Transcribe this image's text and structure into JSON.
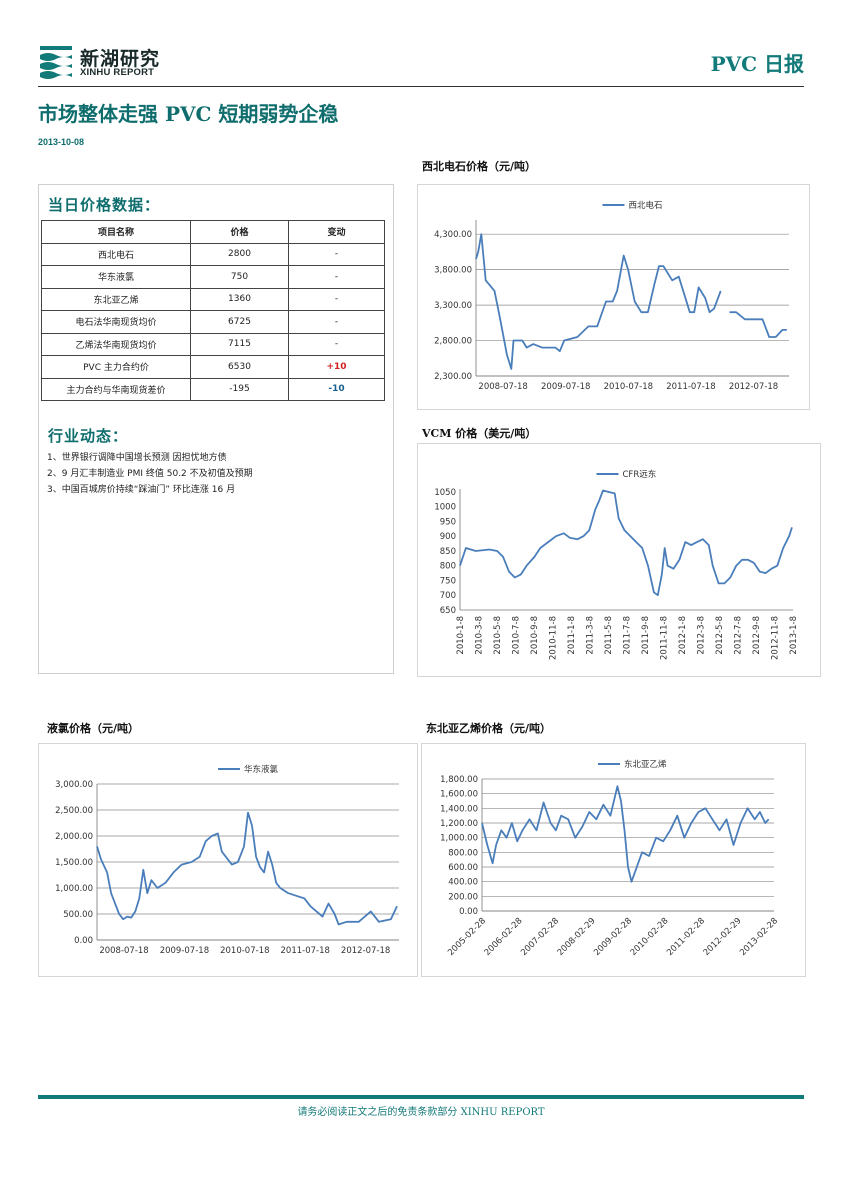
{
  "header": {
    "logo_cn": "新湖研究",
    "logo_en": "XINHU REPORT",
    "doc_type": "PVC 日报",
    "headline": "市场整体走强 PVC 短期弱势企稳",
    "date": "2013-10-08",
    "brand_color": "#127a78"
  },
  "price_section": {
    "heading": "当日价格数据：",
    "columns": [
      "项目名称",
      "价格",
      "变动"
    ],
    "rows": [
      {
        "name": "西北电石",
        "price": "2800",
        "change": "-"
      },
      {
        "name": "华东液氯",
        "price": "750",
        "change": "-"
      },
      {
        "name": "东北亚乙烯",
        "price": "1360",
        "change": "-"
      },
      {
        "name": "电石法华南现货均价",
        "price": "6725",
        "change": "-"
      },
      {
        "name": "乙烯法华南现货均价",
        "price": "7115",
        "change": "-"
      },
      {
        "name": "PVC 主力合约价",
        "price": "6530",
        "change": "+10"
      },
      {
        "name": "主力合约与华南现货差价",
        "price": "-195",
        "change": "-10"
      }
    ],
    "up_color": "#d21f1f",
    "down_color": "#155f8c"
  },
  "news_section": {
    "heading": "行业动态：",
    "items": [
      "1、世界银行调降中国增长预测  因担忧地方债",
      "2、9 月汇丰制造业 PMI 终值 50.2  不及初值及预期",
      "3、中国百城房价持续“踩油门”   环比连涨 16 月"
    ]
  },
  "footer": {
    "note": "请务必阅读正文之后的免责条款部分 XINHU REPORT"
  },
  "chart_data": [
    {
      "id": "carbide",
      "type": "line",
      "title": "西北电石价格（元/吨）",
      "series": [
        {
          "name": "西北电石",
          "color": "#4a7ebb"
        }
      ],
      "x_ticks": [
        "2008-07-18",
        "2009-07-18",
        "2010-07-18",
        "2011-07-18",
        "2012-07-18"
      ],
      "y_ticks": [
        "2,300.00",
        "2,800.00",
        "3,300.00",
        "3,800.00",
        "4,300.00"
      ],
      "ylim": [
        2300,
        4500
      ],
      "grid": true,
      "legend": "top",
      "points": [
        [
          0,
          3950
        ],
        [
          0.05,
          4050
        ],
        [
          0.12,
          4300
        ],
        [
          0.22,
          3650
        ],
        [
          0.42,
          3500
        ],
        [
          0.55,
          3100
        ],
        [
          0.7,
          2600
        ],
        [
          0.8,
          2400
        ],
        [
          0.85,
          2800
        ],
        [
          1.05,
          2800
        ],
        [
          1.15,
          2700
        ],
        [
          1.3,
          2750
        ],
        [
          1.5,
          2700
        ],
        [
          1.8,
          2700
        ],
        [
          1.9,
          2650
        ],
        [
          2.0,
          2800
        ],
        [
          2.3,
          2850
        ],
        [
          2.55,
          3000
        ],
        [
          2.75,
          3000
        ],
        [
          2.95,
          3350
        ],
        [
          3.1,
          3350
        ],
        [
          3.2,
          3500
        ],
        [
          3.35,
          4000
        ],
        [
          3.45,
          3800
        ],
        [
          3.6,
          3350
        ],
        [
          3.75,
          3200
        ],
        [
          3.9,
          3200
        ],
        [
          4.05,
          3600
        ],
        [
          4.15,
          3850
        ],
        [
          4.25,
          3850
        ],
        [
          4.45,
          3650
        ],
        [
          4.6,
          3700
        ],
        [
          4.75,
          3400
        ],
        [
          4.85,
          3200
        ],
        [
          4.95,
          3200
        ],
        [
          5.05,
          3550
        ],
        [
          5.2,
          3400
        ],
        [
          5.3,
          3200
        ],
        [
          5.4,
          3250
        ],
        [
          5.55,
          3500
        ],
        [
          5.7,
          null
        ],
        [
          5.75,
          3200
        ],
        [
          5.9,
          3200
        ],
        [
          6.1,
          3100
        ],
        [
          6.5,
          3100
        ],
        [
          6.65,
          2850
        ],
        [
          6.8,
          2850
        ],
        [
          6.95,
          2950
        ],
        [
          7.05,
          2950
        ]
      ],
      "x_domain": [
        0,
        7.1
      ]
    },
    {
      "id": "vcm",
      "type": "line",
      "title": "VCM 价格（美元/吨）",
      "series": [
        {
          "name": "CFR远东",
          "color": "#4a7ebb"
        }
      ],
      "x_ticks": [
        "2010-1-8",
        "2010-3-8",
        "2010-5-8",
        "2010-7-8",
        "2010-9-8",
        "2010-11-8",
        "2011-1-8",
        "2011-3-8",
        "2011-5-8",
        "2011-7-8",
        "2011-9-8",
        "2011-11-8",
        "2012-1-8",
        "2012-3-8",
        "2012-5-8",
        "2012-7-8",
        "2012-9-8",
        "2012-11-8",
        "2013-1-8"
      ],
      "y_ticks": [
        "650",
        "700",
        "750",
        "800",
        "850",
        "900",
        "950",
        "1000",
        "1050"
      ],
      "ylim": [
        650,
        1060
      ],
      "grid": false,
      "legend": "top",
      "points": [
        [
          0,
          800
        ],
        [
          0.3,
          860
        ],
        [
          0.8,
          850
        ],
        [
          1.5,
          855
        ],
        [
          1.9,
          850
        ],
        [
          2.2,
          830
        ],
        [
          2.5,
          780
        ],
        [
          2.8,
          760
        ],
        [
          3.1,
          770
        ],
        [
          3.4,
          800
        ],
        [
          3.8,
          830
        ],
        [
          4.1,
          860
        ],
        [
          4.5,
          880
        ],
        [
          4.9,
          900
        ],
        [
          5.3,
          910
        ],
        [
          5.6,
          895
        ],
        [
          6.0,
          890
        ],
        [
          6.3,
          900
        ],
        [
          6.6,
          920
        ],
        [
          6.9,
          990
        ],
        [
          7.1,
          1020
        ],
        [
          7.3,
          1055
        ],
        [
          7.6,
          1050
        ],
        [
          7.9,
          1045
        ],
        [
          8.1,
          960
        ],
        [
          8.4,
          920
        ],
        [
          8.7,
          900
        ],
        [
          9.0,
          880
        ],
        [
          9.3,
          860
        ],
        [
          9.6,
          800
        ],
        [
          9.9,
          710
        ],
        [
          10.1,
          700
        ],
        [
          10.3,
          770
        ],
        [
          10.45,
          860
        ],
        [
          10.6,
          800
        ],
        [
          10.9,
          790
        ],
        [
          11.2,
          820
        ],
        [
          11.5,
          880
        ],
        [
          11.8,
          870
        ],
        [
          12.1,
          880
        ],
        [
          12.4,
          890
        ],
        [
          12.7,
          870
        ],
        [
          12.9,
          800
        ],
        [
          13.2,
          740
        ],
        [
          13.5,
          740
        ],
        [
          13.8,
          760
        ],
        [
          14.1,
          800
        ],
        [
          14.4,
          820
        ],
        [
          14.7,
          820
        ],
        [
          15.0,
          810
        ],
        [
          15.3,
          780
        ],
        [
          15.6,
          775
        ],
        [
          15.9,
          790
        ],
        [
          16.2,
          800
        ],
        [
          16.5,
          860
        ],
        [
          16.8,
          900
        ],
        [
          16.95,
          930
        ]
      ],
      "x_domain": [
        0,
        17
      ]
    },
    {
      "id": "chlorine",
      "type": "line",
      "title": "液氯价格（元/吨）",
      "series": [
        {
          "name": "华东液氯",
          "color": "#4a7ebb"
        }
      ],
      "x_ticks": [
        "2008-07-18",
        "2009-07-18",
        "2010-07-18",
        "2011-07-18",
        "2012-07-18"
      ],
      "y_ticks": [
        "0.00",
        "500.00",
        "1,000.00",
        "1,500.00",
        "2,000.00",
        "2,500.00",
        "3,000.00"
      ],
      "ylim": [
        0,
        3000
      ],
      "grid": true,
      "legend": "top",
      "points": [
        [
          0,
          1800
        ],
        [
          0.1,
          1550
        ],
        [
          0.25,
          1300
        ],
        [
          0.35,
          900
        ],
        [
          0.45,
          700
        ],
        [
          0.55,
          500
        ],
        [
          0.65,
          400
        ],
        [
          0.75,
          450
        ],
        [
          0.85,
          430
        ],
        [
          0.95,
          550
        ],
        [
          1.05,
          800
        ],
        [
          1.15,
          1350
        ],
        [
          1.25,
          900
        ],
        [
          1.35,
          1150
        ],
        [
          1.5,
          1000
        ],
        [
          1.7,
          1100
        ],
        [
          1.9,
          1300
        ],
        [
          2.1,
          1450
        ],
        [
          2.35,
          1500
        ],
        [
          2.55,
          1600
        ],
        [
          2.7,
          1900
        ],
        [
          2.85,
          2000
        ],
        [
          3.0,
          2050
        ],
        [
          3.1,
          1700
        ],
        [
          3.25,
          1550
        ],
        [
          3.35,
          1450
        ],
        [
          3.5,
          1500
        ],
        [
          3.65,
          1800
        ],
        [
          3.75,
          2450
        ],
        [
          3.85,
          2200
        ],
        [
          3.95,
          1600
        ],
        [
          4.05,
          1400
        ],
        [
          4.15,
          1300
        ],
        [
          4.25,
          1700
        ],
        [
          4.35,
          1450
        ],
        [
          4.45,
          1100
        ],
        [
          4.55,
          1000
        ],
        [
          4.75,
          900
        ],
        [
          4.95,
          850
        ],
        [
          5.15,
          800
        ],
        [
          5.3,
          650
        ],
        [
          5.45,
          550
        ],
        [
          5.6,
          450
        ],
        [
          5.75,
          700
        ],
        [
          5.9,
          500
        ],
        [
          6.0,
          300
        ],
        [
          6.2,
          350
        ],
        [
          6.5,
          350
        ],
        [
          6.8,
          550
        ],
        [
          7.0,
          350
        ],
        [
          7.3,
          400
        ],
        [
          7.45,
          650
        ]
      ],
      "x_domain": [
        0,
        7.5
      ]
    },
    {
      "id": "ethylene",
      "type": "line",
      "title": "东北亚乙烯价格（元/吨）",
      "series": [
        {
          "name": "东北亚乙烯",
          "color": "#4a7ebb"
        }
      ],
      "x_ticks": [
        "2005-02-28",
        "2006-02-28",
        "2007-02-28",
        "2008-02-29",
        "2009-02-28",
        "2010-02-28",
        "2011-02-28",
        "2012-02-29",
        "2013-02-28"
      ],
      "y_ticks": [
        "0.00",
        "200.00",
        "400.00",
        "600.00",
        "800.00",
        "1,000.00",
        "1,200.00",
        "1,400.00",
        "1,600.00",
        "1,800.00"
      ],
      "ylim": [
        0,
        1800
      ],
      "grid": true,
      "legend": "top",
      "points": [
        [
          0,
          1200
        ],
        [
          0.15,
          900
        ],
        [
          0.3,
          650
        ],
        [
          0.4,
          900
        ],
        [
          0.55,
          1100
        ],
        [
          0.7,
          1000
        ],
        [
          0.85,
          1200
        ],
        [
          1.0,
          950
        ],
        [
          1.15,
          1100
        ],
        [
          1.35,
          1250
        ],
        [
          1.55,
          1100
        ],
        [
          1.75,
          1480
        ],
        [
          1.95,
          1200
        ],
        [
          2.1,
          1100
        ],
        [
          2.25,
          1300
        ],
        [
          2.45,
          1250
        ],
        [
          2.65,
          1000
        ],
        [
          2.85,
          1150
        ],
        [
          3.05,
          1350
        ],
        [
          3.25,
          1250
        ],
        [
          3.45,
          1450
        ],
        [
          3.65,
          1300
        ],
        [
          3.85,
          1700
        ],
        [
          3.95,
          1500
        ],
        [
          4.05,
          1100
        ],
        [
          4.15,
          600
        ],
        [
          4.25,
          400
        ],
        [
          4.4,
          600
        ],
        [
          4.55,
          800
        ],
        [
          4.75,
          750
        ],
        [
          4.95,
          1000
        ],
        [
          5.15,
          950
        ],
        [
          5.35,
          1100
        ],
        [
          5.55,
          1300
        ],
        [
          5.75,
          1000
        ],
        [
          5.95,
          1200
        ],
        [
          6.15,
          1350
        ],
        [
          6.35,
          1400
        ],
        [
          6.55,
          1250
        ],
        [
          6.75,
          1100
        ],
        [
          6.95,
          1250
        ],
        [
          7.15,
          900
        ],
        [
          7.35,
          1200
        ],
        [
          7.55,
          1400
        ],
        [
          7.75,
          1250
        ],
        [
          7.9,
          1350
        ],
        [
          8.05,
          1200
        ],
        [
          8.15,
          1250
        ]
      ],
      "x_domain": [
        0,
        8.3
      ]
    }
  ]
}
